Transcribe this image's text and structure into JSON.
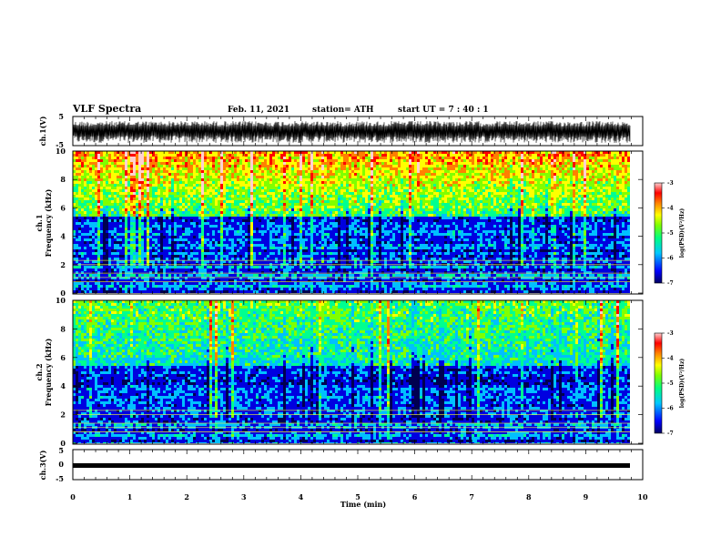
{
  "header": {
    "title": "VLF Spectra",
    "date": "Feb. 11, 2021",
    "station": "station= ATH",
    "start": "start  UT =   7 : 40 : 1"
  },
  "chart_data": [
    {
      "type": "line",
      "name": "ch1-waveform",
      "ylabel": "ch.1(V)",
      "ylim": [
        -5,
        5
      ],
      "yticks": [
        "5",
        "-5"
      ],
      "xlim": [
        0,
        10
      ],
      "trace_color": "#000000",
      "description": ""
    },
    {
      "type": "heatmap",
      "name": "ch1-spectrogram",
      "ylabel": "ch.1\nFrequency (kHz)",
      "ylabel_lines": [
        "ch.1",
        "Frequency (kHz)"
      ],
      "ylim": [
        0,
        10
      ],
      "yticks": [
        "0",
        "2",
        "4",
        "6",
        "8",
        "10"
      ],
      "xlim": [
        0,
        9.8
      ],
      "colorbar": {
        "label": "log(PSD)(V²/Hz)",
        "range": [
          -7,
          -3
        ],
        "ticks": [
          "-3",
          "-4",
          "-5",
          "-6",
          "-7"
        ],
        "colors": [
          "#000080",
          "#0000ff",
          "#00c0ff",
          "#00ff80",
          "#80ff00",
          "#ffff00",
          "#ff8000",
          "#ff0000",
          "#ffc0c0",
          "#ffffff"
        ]
      }
    },
    {
      "type": "heatmap",
      "name": "ch2-spectrogram",
      "ylabel": "ch.2\nFrequency (kHz)",
      "ylabel_lines": [
        "ch.2",
        "Frequency (kHz)"
      ],
      "ylim": [
        0,
        10
      ],
      "yticks": [
        "0",
        "2",
        "4",
        "6",
        "8",
        "10"
      ],
      "xlim": [
        0,
        9.8
      ],
      "colorbar": {
        "label": "log(PSD)(V²/Hz)",
        "range": [
          -7,
          -3
        ],
        "ticks": [
          "-3",
          "-4",
          "-5",
          "-6",
          "-7"
        ],
        "colors": [
          "#000080",
          "#0000ff",
          "#00c0ff",
          "#00ff80",
          "#80ff00",
          "#ffff00",
          "#ff8000",
          "#ff0000",
          "#ffc0c0",
          "#ffffff"
        ]
      }
    },
    {
      "type": "line",
      "name": "ch3-waveform",
      "ylabel": "ch.3(V)",
      "ylim": [
        -5,
        5
      ],
      "yticks": [
        "5",
        "0",
        "-5"
      ],
      "xlim": [
        0,
        10
      ],
      "values": [
        -1,
        -1
      ],
      "trace_color": "#000000"
    }
  ],
  "xaxis": {
    "label": "Time (min)",
    "range": [
      0,
      10
    ],
    "ticks": [
      "0",
      "1",
      "2",
      "3",
      "4",
      "5",
      "6",
      "7",
      "8",
      "9",
      "10"
    ]
  }
}
